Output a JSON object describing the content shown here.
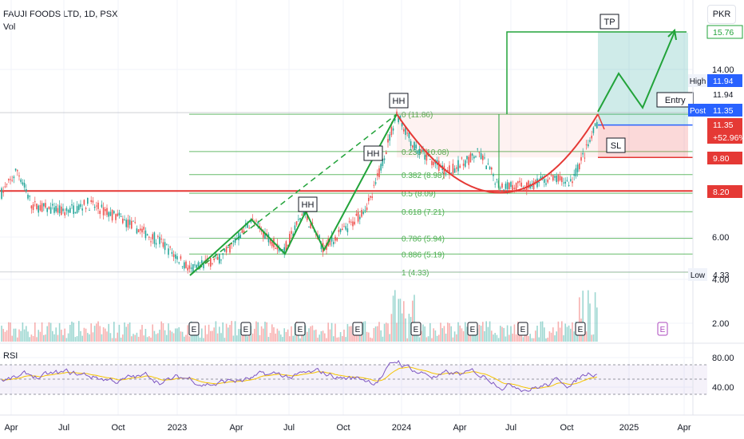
{
  "header": {
    "symbol_line": "FAUJI FOODS LTD, 1D, PSX",
    "indicator": "Vol"
  },
  "currency_button": "PKR",
  "rsi_label": "RSI",
  "colors": {
    "up": "#26a69a",
    "down": "#ef5350",
    "green_line": "#22a33a",
    "red_line": "#e53935",
    "blue": "#2962ff",
    "rsi": "#7e57c2",
    "rsi_ma": "#f5c300"
  },
  "chart_data": {
    "type": "candlestick",
    "price_axis": {
      "ticks": [
        "14.00",
        "6.00",
        "4.00",
        "2.00"
      ]
    },
    "rsi_axis": {
      "ticks": [
        "80.00",
        "40.00"
      ]
    },
    "time_axis": {
      "ticks": [
        "Apr",
        "Jul",
        "Oct",
        "2023",
        "Apr",
        "Jul",
        "Oct",
        "2024",
        "Apr",
        "Jul",
        "Oct",
        "2025",
        "Apr"
      ]
    },
    "price_labels": [
      {
        "text": "15.76",
        "style": "green"
      },
      {
        "text": "11.94",
        "style": "blue",
        "tag": "High"
      },
      {
        "text": "11.94",
        "style": "plain"
      },
      {
        "text": "11.35",
        "style": "blue",
        "tag": "Post"
      },
      {
        "text": "11.35",
        "style": "red"
      },
      {
        "text": "+52.96%",
        "style": "red"
      },
      {
        "text": "9.80",
        "style": "red"
      },
      {
        "text": "8.20",
        "style": "red"
      },
      {
        "text": "4.33",
        "style": "plain",
        "tag": "Low"
      }
    ],
    "fibonacci": [
      {
        "label": "0 (11.86)",
        "price": 11.86
      },
      {
        "label": "0.236 (10.08)",
        "price": 10.08
      },
      {
        "label": "0.382 (8.98)",
        "price": 8.98
      },
      {
        "label": "0.5 (8.09)",
        "price": 8.09
      },
      {
        "label": "0.618 (7.21)",
        "price": 7.21
      },
      {
        "label": "0.786 (5.94)",
        "price": 5.94
      },
      {
        "label": "0.886 (5.19)",
        "price": 5.19
      },
      {
        "label": "1 (4.33)",
        "price": 4.33
      }
    ],
    "annotations": [
      "HH",
      "HH",
      "HH",
      "TP",
      "Entry",
      "SL"
    ],
    "earnings_marker": "E",
    "earnings_count": 10,
    "levels": {
      "tp": 15.76,
      "entry": 11.35,
      "sl": 9.8,
      "support": 8.2,
      "high": 11.94,
      "low": 4.33
    },
    "rsi_levels": [
      70,
      50,
      30
    ]
  }
}
